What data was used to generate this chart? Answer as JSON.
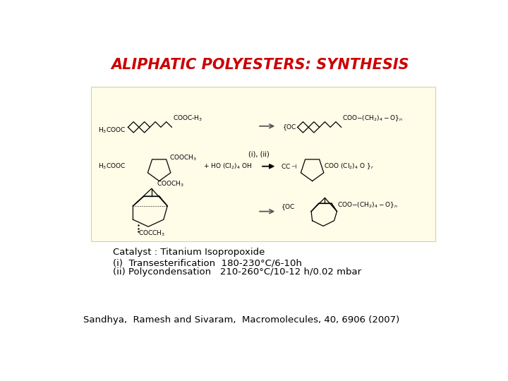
{
  "title": "ALIPHATIC POLYESTERS: SYNTHESIS",
  "title_color": "#CC0000",
  "title_fontsize": 15,
  "title_fontstyle": "italic",
  "title_fontweight": "bold",
  "bg_color": "#ffffff",
  "box_facecolor": "#FFFCE8",
  "box_edgecolor": "#d4d49a",
  "catalyst_text": "Catalyst : Titanium Isopropoxide",
  "step_i_text": "(i)  Transesterification  180-230°C/6-10h",
  "step_ii_text": "(ii) Polycondensation   210-260°C/10-12 h/0.02 mbar",
  "ref_text": "Sandhya,  Ramesh and Sivaram,  Macromolecules, 40, 6906 (2007)",
  "text_fontsize": 9.5,
  "ref_fontsize": 9.5
}
